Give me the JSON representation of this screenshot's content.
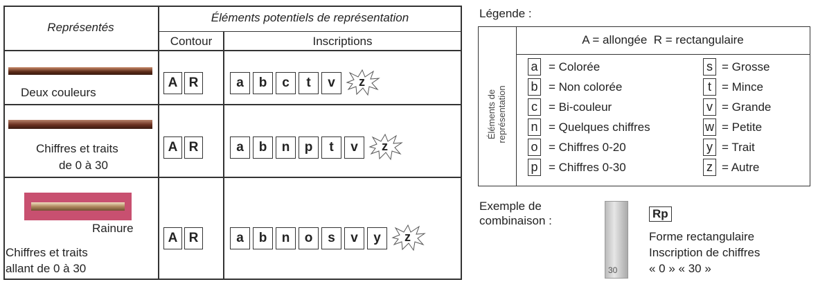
{
  "table": {
    "header": {
      "represented": "Représentés",
      "elements": "Éléments potentiels de représentation",
      "contour": "Contour",
      "inscriptions": "Inscriptions"
    },
    "rows": [
      {
        "captions": [
          "Deux couleurs"
        ],
        "contour": [
          "A",
          "R"
        ],
        "inscriptions": [
          "a",
          "b",
          "c",
          "t",
          "v"
        ],
        "other": "z"
      },
      {
        "captions": [
          "Chiffres et traits",
          "de 0 à 30"
        ],
        "contour": [
          "A",
          "R"
        ],
        "inscriptions": [
          "a",
          "b",
          "n",
          "p",
          "t",
          "v"
        ],
        "other": "z"
      },
      {
        "captions": [
          "Rainure",
          "Chiffres et traits",
          "allant de 0 à 30"
        ],
        "contour": [
          "A",
          "R"
        ],
        "inscriptions": [
          "a",
          "b",
          "n",
          "o",
          "s",
          "v",
          "y"
        ],
        "other": "z"
      }
    ]
  },
  "legend": {
    "title": "Légende :",
    "shapes": "A = allongée  R = rectangulaire",
    "side_label": [
      "Éléments de",
      "représentation"
    ],
    "items_left": [
      {
        "code": "a",
        "text": "= Colorée"
      },
      {
        "code": "b",
        "text": "= Non colorée"
      },
      {
        "code": "c",
        "text": "= Bi-couleur"
      },
      {
        "code": "n",
        "text": "= Quelques chiffres"
      },
      {
        "code": "o",
        "text": "= Chiffres 0-20"
      },
      {
        "code": "p",
        "text": "= Chiffres 0-30"
      }
    ],
    "items_right": [
      {
        "code": "s",
        "text": "= Grosse"
      },
      {
        "code": "t",
        "text": "= Mince"
      },
      {
        "code": "v",
        "text": "= Grande"
      },
      {
        "code": "w",
        "text": "= Petite"
      },
      {
        "code": "y",
        "text": "= Trait"
      },
      {
        "code": "z",
        "text": "= Autre"
      }
    ]
  },
  "example": {
    "label": [
      "Exemple de",
      "combinaison :"
    ],
    "code": "Rp",
    "lines": [
      "Forme rectangulaire",
      "Inscription de chiffres",
      "« 0 » « 30 »"
    ],
    "image_text": "30"
  }
}
